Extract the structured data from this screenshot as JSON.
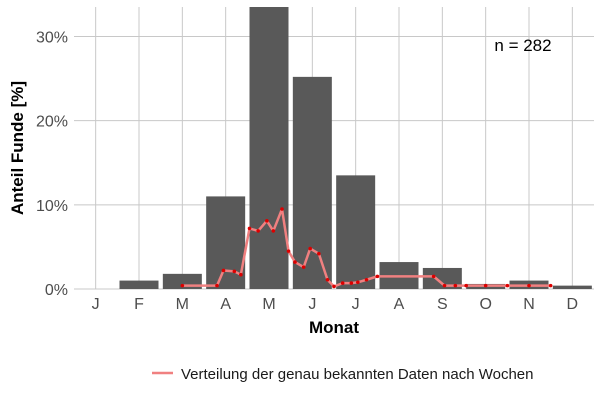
{
  "chart_data": {
    "type": "bar",
    "xlabel": "Monat",
    "ylabel": "Anteil Funde [%]",
    "categories": [
      "J",
      "F",
      "M",
      "A",
      "M",
      "J",
      "J",
      "A",
      "S",
      "O",
      "N",
      "D"
    ],
    "ylim": [
      0,
      33.5
    ],
    "y_ticks": [
      0,
      10,
      20,
      30
    ],
    "y_tick_labels": [
      "0%",
      "10%",
      "20%",
      "30%"
    ],
    "grid": true,
    "annotation": "n = 282",
    "colors": {
      "bar": "#595959",
      "line": "#f08080",
      "point": "#dd0000",
      "grid": "#c8c8c8"
    },
    "series": [
      {
        "type": "bar",
        "values": [
          0.0,
          1.0,
          1.8,
          11.0,
          33.5,
          25.2,
          13.5,
          3.2,
          2.5,
          0.6,
          1.0,
          0.4
        ]
      },
      {
        "type": "line",
        "name": "Verteilung der genau bekannten Daten nach Wochen",
        "x": [
          3.0,
          3.8,
          3.95,
          4.2,
          4.35,
          4.55,
          4.75,
          4.95,
          5.1,
          5.3,
          5.45,
          5.6,
          5.8,
          5.95,
          6.15,
          6.35,
          6.5,
          6.7,
          6.9,
          7.05,
          7.25,
          7.5,
          8.8,
          9.05,
          9.3,
          9.55,
          10.0,
          10.5,
          11.0,
          11.5
        ],
        "values": [
          0.4,
          0.4,
          2.2,
          2.1,
          1.7,
          7.2,
          6.9,
          8.1,
          6.9,
          9.5,
          4.5,
          3.2,
          2.6,
          4.8,
          4.2,
          1.1,
          0.3,
          0.7,
          0.7,
          0.8,
          1.1,
          1.5,
          1.5,
          0.4,
          0.4,
          0.4,
          0.4,
          0.4,
          0.4,
          0.4
        ]
      }
    ]
  }
}
